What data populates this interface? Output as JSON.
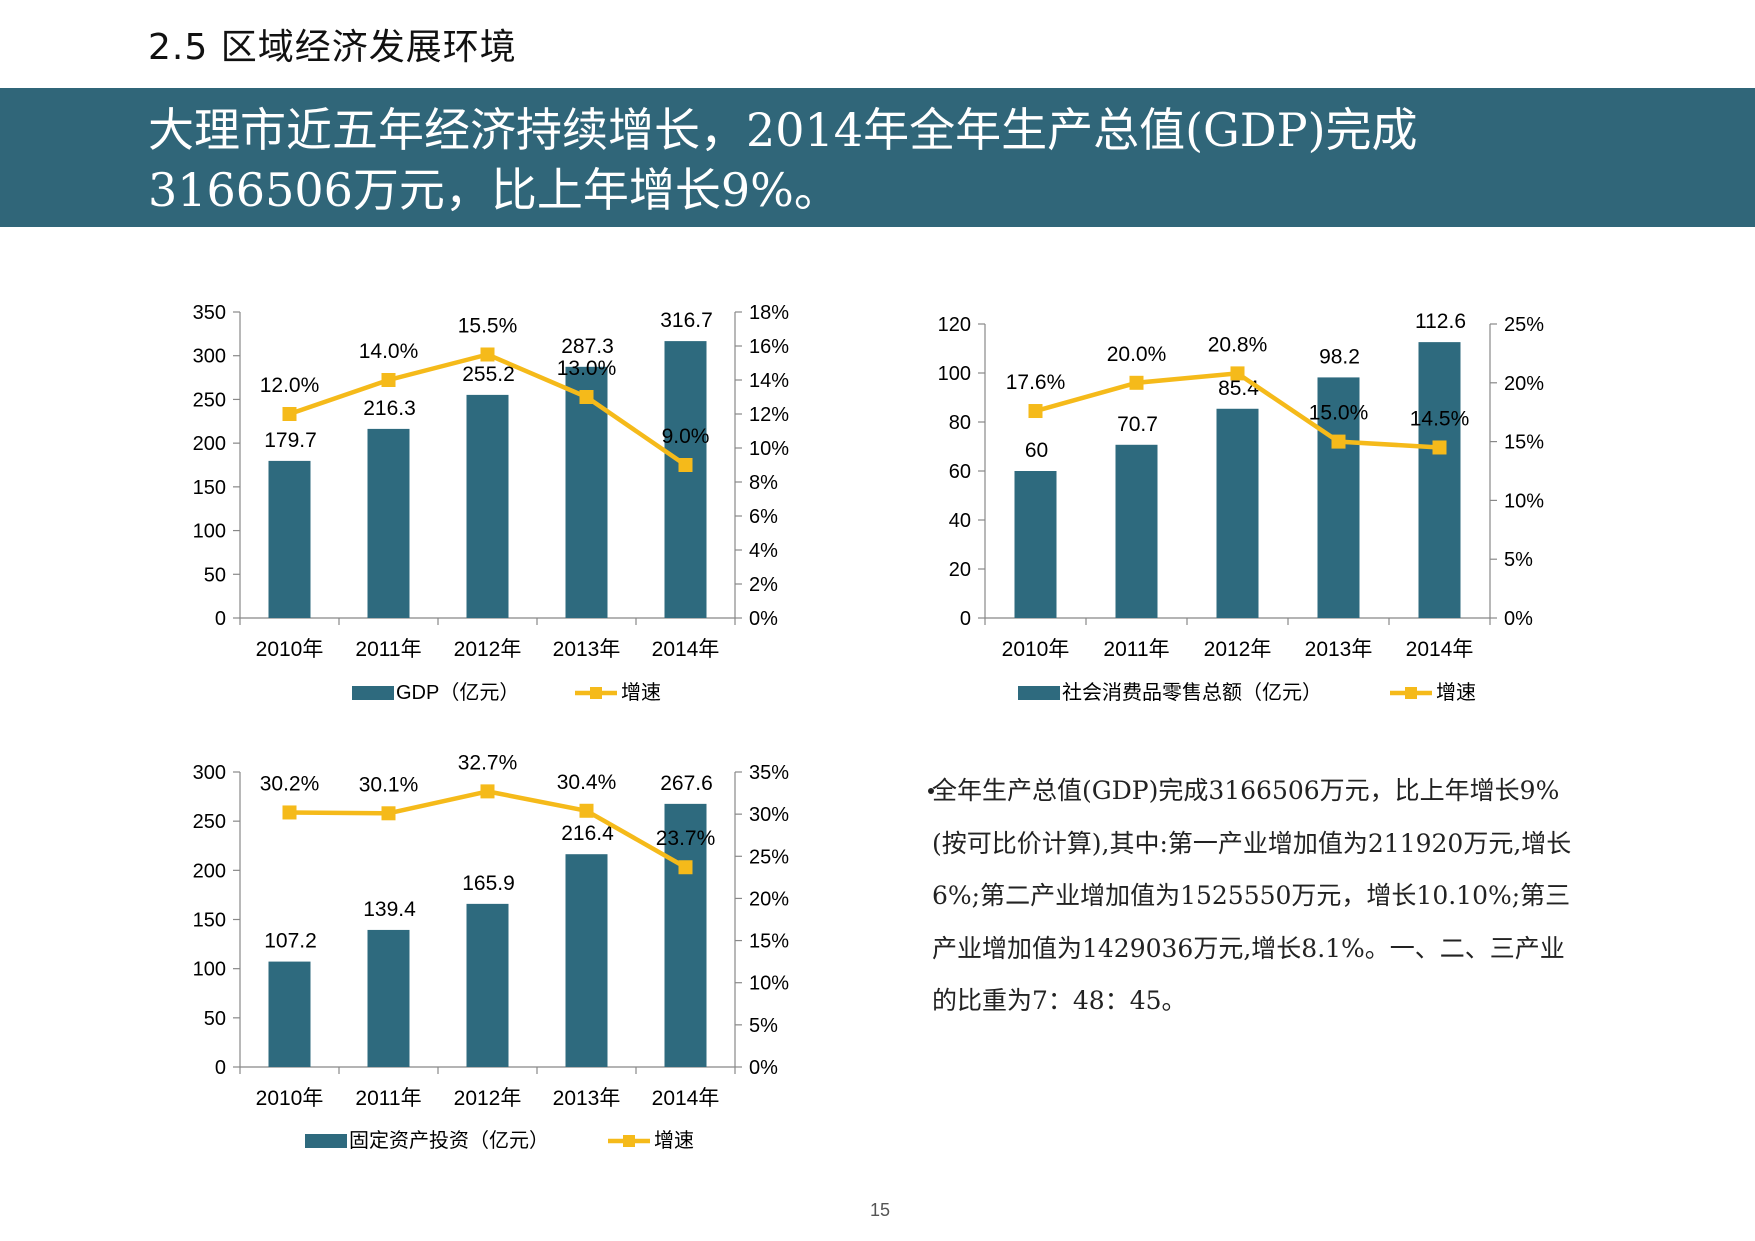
{
  "header": {
    "section_title": "2.5 区域经济发展环境",
    "banner_line1": "大理市近五年经济持续增长，2014年全年生产总值(GDP)完成",
    "banner_line2": "3166506万元，比上年增长9%。"
  },
  "colors": {
    "banner": "#306679",
    "bar": "#2E6A7E",
    "line": "#F5BA1A"
  },
  "chart_data": [
    {
      "type": "bar",
      "categories": [
        "2010年",
        "2011年",
        "2012年",
        "2013年",
        "2014年"
      ],
      "series": [
        {
          "name": "GDP（亿元）",
          "type": "bar",
          "axis": "left",
          "values": [
            179.7,
            216.3,
            255.2,
            287.3,
            316.7
          ],
          "labels": [
            "179.7",
            "216.3",
            "255.2",
            "287.3",
            "316.7"
          ]
        },
        {
          "name": "增速",
          "type": "line",
          "axis": "right",
          "values": [
            12.0,
            14.0,
            15.5,
            13.0,
            9.0
          ],
          "labels": [
            "12.0%",
            "14.0%",
            "15.5%",
            "13.0%",
            "9.0%"
          ]
        }
      ],
      "y_left": {
        "min": 0,
        "max": 350,
        "ticks": [
          "0",
          "50",
          "100",
          "150",
          "200",
          "250",
          "300",
          "350"
        ]
      },
      "y_right": {
        "min": 0,
        "max": 18,
        "ticks": [
          "0%",
          "2%",
          "4%",
          "6%",
          "8%",
          "10%",
          "12%",
          "14%",
          "16%",
          "18%"
        ]
      },
      "legend": "bottom"
    },
    {
      "type": "bar",
      "categories": [
        "2010年",
        "2011年",
        "2012年",
        "2013年",
        "2014年"
      ],
      "series": [
        {
          "name": "社会消费品零售总额（亿元）",
          "type": "bar",
          "axis": "left",
          "values": [
            60,
            70.7,
            85.4,
            98.2,
            112.6
          ],
          "labels": [
            "60",
            "70.7",
            "85.4",
            "98.2",
            "112.6"
          ]
        },
        {
          "name": "增速",
          "type": "line",
          "axis": "right",
          "values": [
            17.6,
            20.0,
            20.8,
            15.0,
            14.5
          ],
          "labels": [
            "17.6%",
            "20.0%",
            "20.8%",
            "15.0%",
            "14.5%"
          ]
        }
      ],
      "y_left": {
        "min": 0,
        "max": 120,
        "ticks": [
          "0",
          "20",
          "40",
          "60",
          "80",
          "100",
          "120"
        ]
      },
      "y_right": {
        "min": 0,
        "max": 25,
        "ticks": [
          "0%",
          "5%",
          "10%",
          "15%",
          "20%",
          "25%"
        ]
      },
      "legend": "bottom"
    },
    {
      "type": "bar",
      "categories": [
        "2010年",
        "2011年",
        "2012年",
        "2013年",
        "2014年"
      ],
      "series": [
        {
          "name": "固定资产投资（亿元）",
          "type": "bar",
          "axis": "left",
          "values": [
            107.2,
            139.4,
            165.9,
            216.4,
            267.6
          ],
          "labels": [
            "107.2",
            "139.4",
            "165.9",
            "216.4",
            "267.6"
          ]
        },
        {
          "name": "增速",
          "type": "line",
          "axis": "right",
          "values": [
            30.2,
            30.1,
            32.7,
            30.4,
            23.7
          ],
          "labels": [
            "30.2%",
            "30.1%",
            "32.7%",
            "30.4%",
            "23.7%"
          ]
        }
      ],
      "y_left": {
        "min": 0,
        "max": 300,
        "ticks": [
          "0",
          "50",
          "100",
          "150",
          "200",
          "250",
          "300"
        ]
      },
      "y_right": {
        "min": 0,
        "max": 35,
        "ticks": [
          "0%",
          "5%",
          "10%",
          "15%",
          "20%",
          "25%",
          "30%",
          "35%"
        ]
      },
      "legend": "bottom"
    }
  ],
  "summary": {
    "text": "全年生产总值(GDP)完成3166506万元，比上年增长9%(按可比价计算),其中:第一产业增加值为211920万元,增长6%;第二产业增加值为1525550万元，增长10.10%;第三产业增加值为1429036万元,增长8.1%。一、二、三产业的比重为7：48：45。"
  },
  "footer": {
    "page_number": "15"
  }
}
